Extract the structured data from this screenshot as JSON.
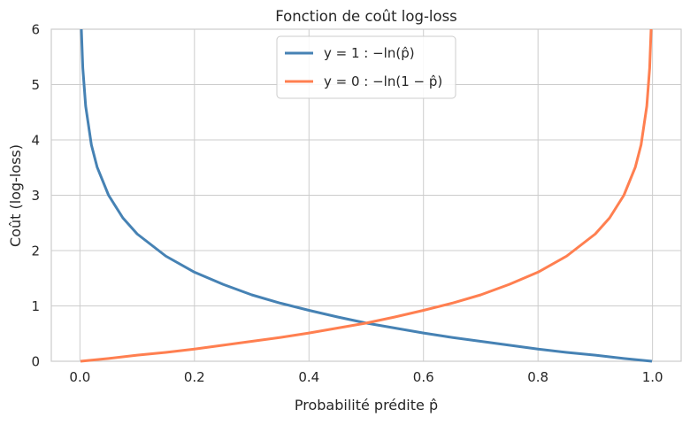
{
  "chart_data": {
    "type": "line",
    "title": "Fonction de coût log-loss",
    "xlabel": "Probabilité prédite p̂",
    "ylabel": "Coût (log-loss)",
    "xlim": [
      -0.05,
      1.05
    ],
    "ylim": [
      0,
      6
    ],
    "xticks": [
      "0.0",
      "0.2",
      "0.4",
      "0.6",
      "0.8",
      "1.0"
    ],
    "yticks": [
      "0",
      "1",
      "2",
      "3",
      "4",
      "5",
      "6"
    ],
    "grid": true,
    "legend_position": "top-center",
    "series": [
      {
        "name": "y = 1 : −ln(p̂)",
        "color": "#4682b4",
        "x": [
          0.0025,
          0.005,
          0.01,
          0.02,
          0.03,
          0.05,
          0.075,
          0.1,
          0.15,
          0.2,
          0.25,
          0.3,
          0.35,
          0.4,
          0.45,
          0.5,
          0.55,
          0.6,
          0.65,
          0.7,
          0.75,
          0.8,
          0.85,
          0.9,
          0.95,
          0.999
        ],
        "y": [
          6.0,
          5.3,
          4.61,
          3.91,
          3.51,
          3.0,
          2.59,
          2.3,
          1.9,
          1.61,
          1.39,
          1.2,
          1.05,
          0.92,
          0.8,
          0.69,
          0.6,
          0.51,
          0.43,
          0.36,
          0.29,
          0.22,
          0.16,
          0.11,
          0.05,
          0.0
        ]
      },
      {
        "name": "y = 0 : −ln(1 − p̂)",
        "color": "#ff7f50",
        "x": [
          0.001,
          0.05,
          0.1,
          0.15,
          0.2,
          0.25,
          0.3,
          0.35,
          0.4,
          0.45,
          0.5,
          0.55,
          0.6,
          0.65,
          0.7,
          0.75,
          0.8,
          0.85,
          0.9,
          0.925,
          0.95,
          0.97,
          0.98,
          0.99,
          0.995,
          0.9975
        ],
        "y": [
          0.0,
          0.05,
          0.11,
          0.16,
          0.22,
          0.29,
          0.36,
          0.43,
          0.51,
          0.6,
          0.69,
          0.8,
          0.92,
          1.05,
          1.2,
          1.39,
          1.61,
          1.9,
          2.3,
          2.59,
          3.0,
          3.51,
          3.91,
          4.61,
          5.3,
          6.0
        ]
      }
    ]
  }
}
